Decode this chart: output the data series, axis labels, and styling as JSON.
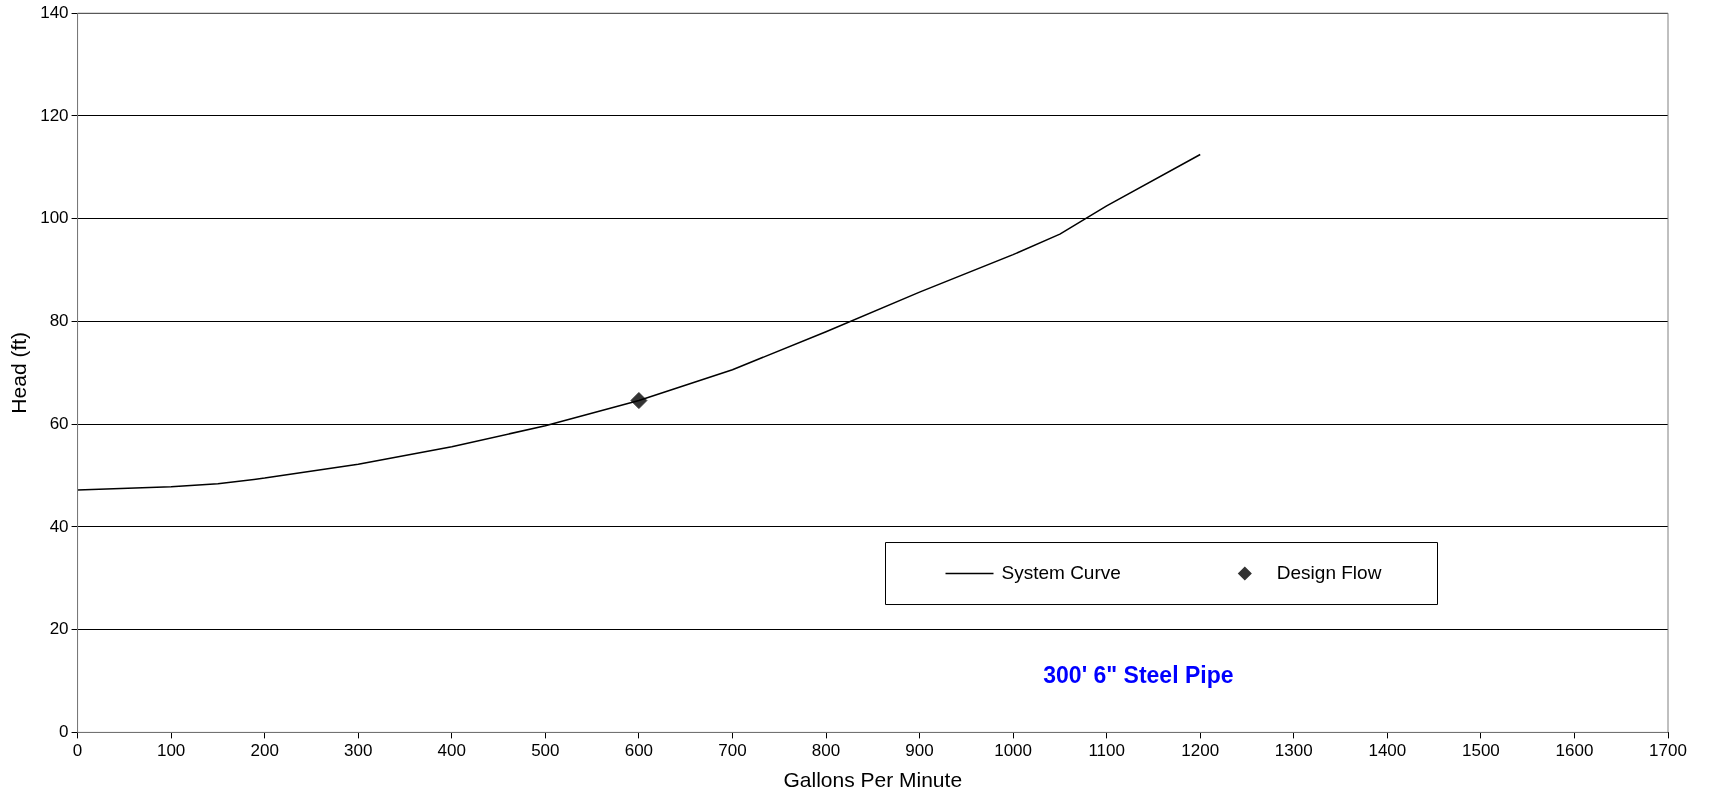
{
  "chart_data": {
    "type": "line",
    "xlabel": "Gallons Per Minute",
    "ylabel": "Head (ft)",
    "xlim": [
      0,
      1700
    ],
    "xticks": [
      0,
      100,
      200,
      300,
      400,
      500,
      600,
      700,
      800,
      900,
      1000,
      1100,
      1200,
      1300,
      1400,
      1500,
      1600,
      1700
    ],
    "ylim": [
      0,
      140
    ],
    "yticks": [
      0,
      20,
      40,
      60,
      80,
      100,
      120,
      140
    ],
    "grid": "y",
    "legend": "bottom right",
    "annotations": [
      "300' 6\" Steel Pipe"
    ],
    "series": [
      {
        "name": "System Curve",
        "color": "#000000",
        "marker": "none",
        "line_style": "solid",
        "x": [
          0,
          100,
          150,
          200,
          300,
          400,
          500,
          600,
          700,
          800,
          900,
          1000,
          1050,
          1100,
          1200
        ],
        "values": [
          47.2,
          47.8,
          48.4,
          49.5,
          52.2,
          55.6,
          59.7,
          64.6,
          70.6,
          78,
          85.7,
          93,
          97,
          102.5,
          112.5
        ]
      },
      {
        "name": "Design Flow",
        "type": "scatter",
        "color": "#333333",
        "marker": "diamond",
        "x": [
          600
        ],
        "values": [
          64.6
        ]
      }
    ]
  }
}
